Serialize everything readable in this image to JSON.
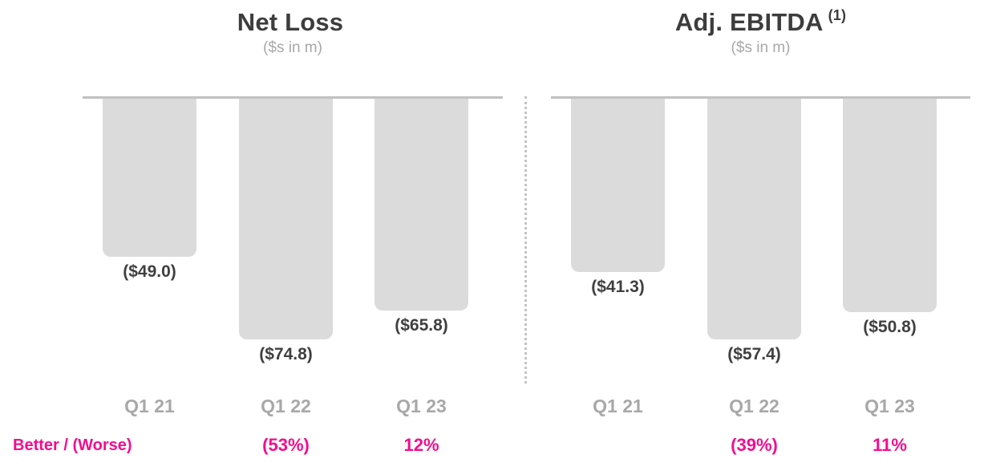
{
  "slide": {
    "better_worse_label": "Better / (Worse)"
  },
  "colors": {
    "bar_fill": "#dbdbdb",
    "baseline": "#c1c1c1",
    "divider": "#c3c3c3",
    "title_text": "#3d3d3d",
    "muted_text": "#a8a8a8",
    "value_text": "#3f3f3f",
    "accent_pink": "#f30d8e",
    "background": "#ffffff"
  },
  "chart_data": [
    {
      "type": "bar",
      "title": "Net Loss",
      "title_superscript": "",
      "subtitle": "($s in m)",
      "categories": [
        "Q1 21",
        "Q1 22",
        "Q1 23"
      ],
      "values": [
        -49.0,
        -74.8,
        -65.8
      ],
      "value_labels": [
        "($49.0)",
        "($74.8)",
        "($65.8)"
      ],
      "better_worse": [
        "",
        "(53%)",
        "12%"
      ],
      "xlabel": "",
      "ylabel": "",
      "ylim": [
        -80,
        0
      ],
      "grid": false,
      "legend": "none",
      "orientation": "columns hang downward from zero baseline at top"
    },
    {
      "type": "bar",
      "title": "Adj. EBITDA",
      "title_superscript": "(1)",
      "subtitle": "($s in m)",
      "categories": [
        "Q1 21",
        "Q1 22",
        "Q1 23"
      ],
      "values": [
        -41.3,
        -57.4,
        -50.8
      ],
      "value_labels": [
        "($41.3)",
        "($57.4)",
        "($50.8)"
      ],
      "better_worse": [
        "",
        "(39%)",
        "11%"
      ],
      "xlabel": "",
      "ylabel": "",
      "ylim": [
        -60,
        0
      ],
      "grid": false,
      "legend": "none",
      "orientation": "columns hang downward from zero baseline at top"
    }
  ]
}
